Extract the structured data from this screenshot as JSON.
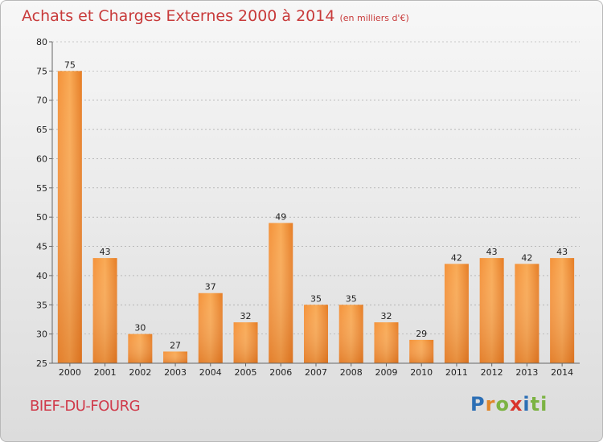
{
  "header": {
    "title": "Achats et Charges Externes 2000 à 2014",
    "subtitle": "(en milliers d'€)"
  },
  "footer": {
    "commune": "BIEF-DU-FOURG",
    "logo_letters": [
      "P",
      "r",
      "o",
      "x",
      "i",
      "ti"
    ]
  },
  "colors": {
    "bar_light": "#f8a54c",
    "bar_dark": "#e0721c",
    "title": "#c83a3a"
  },
  "chart_data": {
    "type": "bar",
    "title": "Achats et Charges Externes 2000 à 2014",
    "subtitle": "(en milliers d'€)",
    "categories": [
      "2000",
      "2001",
      "2002",
      "2003",
      "2004",
      "2005",
      "2006",
      "2007",
      "2008",
      "2009",
      "2010",
      "2011",
      "2012",
      "2013",
      "2014"
    ],
    "values": [
      75,
      43,
      30,
      27,
      37,
      32,
      49,
      35,
      35,
      32,
      29,
      42,
      43,
      42,
      43
    ],
    "ylim": [
      25,
      80
    ],
    "yticks": [
      25,
      30,
      35,
      40,
      45,
      50,
      55,
      60,
      65,
      70,
      75,
      80
    ],
    "grid": true,
    "xlabel": "",
    "ylabel": ""
  }
}
